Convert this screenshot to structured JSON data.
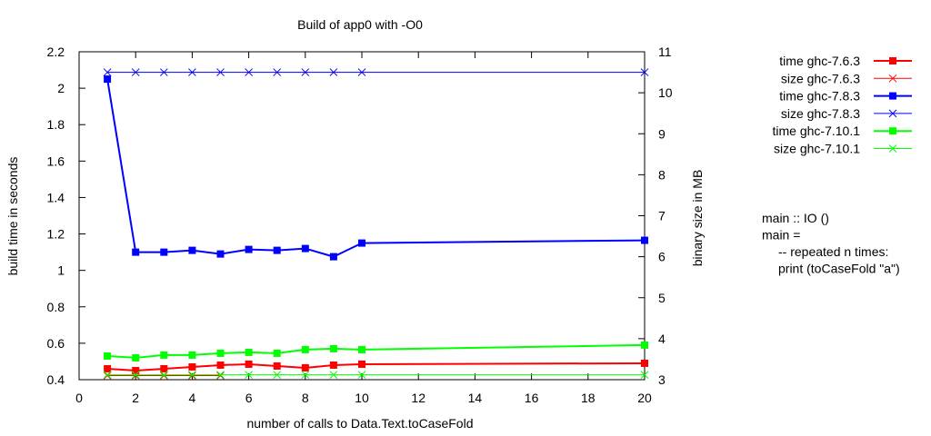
{
  "chart_data": {
    "type": "line",
    "title": "Build of app0 with -O0",
    "xlabel": "number of calls to Data.Text.toCaseFold",
    "ylabel": "build time in seconds",
    "y2label": "binary size in MB",
    "xlim": [
      0,
      20
    ],
    "ylim": [
      0.4,
      2.2
    ],
    "y2lim": [
      3,
      11
    ],
    "xticks": [
      "0",
      "2",
      "4",
      "6",
      "8",
      "10",
      "12",
      "14",
      "16",
      "18",
      "20"
    ],
    "yticks": [
      "0.4",
      "0.6",
      "0.8",
      "1",
      "1.2",
      "1.4",
      "1.6",
      "1.8",
      "2",
      "2.2"
    ],
    "y2ticks": [
      "3",
      "4",
      "5",
      "6",
      "7",
      "8",
      "9",
      "10",
      "11"
    ],
    "grid": false,
    "legend_position": "right",
    "series": [
      {
        "name": "time ghc-7.6.3",
        "axis": "y",
        "marker": "square",
        "color": "#ff0000",
        "x": [
          1,
          2,
          3,
          4,
          5,
          6,
          7,
          8,
          9,
          10,
          20
        ],
        "values": [
          0.46,
          0.45,
          0.46,
          0.47,
          0.48,
          0.485,
          0.475,
          0.465,
          0.48,
          0.485,
          0.49
        ]
      },
      {
        "name": "size ghc-7.6.3",
        "axis": "y2",
        "marker": "x",
        "color": "#ff0000",
        "x": [
          1,
          2,
          3,
          4,
          5
        ],
        "values": [
          3.1,
          3.1,
          3.1,
          3.1,
          3.1
        ]
      },
      {
        "name": "time ghc-7.8.3",
        "axis": "y",
        "marker": "square",
        "color": "#0000ff",
        "x": [
          1,
          2,
          3,
          4,
          5,
          6,
          7,
          8,
          9,
          10,
          20
        ],
        "values": [
          2.05,
          1.1,
          1.1,
          1.11,
          1.09,
          1.115,
          1.11,
          1.12,
          1.075,
          1.15,
          1.165
        ]
      },
      {
        "name": "size ghc-7.8.3",
        "axis": "y2",
        "marker": "x",
        "color": "#0000ff",
        "x": [
          1,
          2,
          3,
          4,
          5,
          6,
          7,
          8,
          9,
          10,
          20
        ],
        "values": [
          10.5,
          10.5,
          10.5,
          10.5,
          10.5,
          10.5,
          10.5,
          10.5,
          10.5,
          10.5,
          10.5
        ]
      },
      {
        "name": "time ghc-7.10.1",
        "axis": "y",
        "marker": "square",
        "color": "#00ff00",
        "x": [
          1,
          2,
          3,
          4,
          5,
          6,
          7,
          8,
          9,
          10,
          20
        ],
        "values": [
          0.53,
          0.52,
          0.535,
          0.535,
          0.545,
          0.55,
          0.545,
          0.565,
          0.57,
          0.565,
          0.59
        ]
      },
      {
        "name": "size ghc-7.10.1",
        "axis": "y2",
        "marker": "x",
        "color": "#00ff00",
        "x": [
          1,
          2,
          3,
          4,
          5,
          6,
          7,
          8,
          9,
          10,
          20
        ],
        "values": [
          3.12,
          3.12,
          3.12,
          3.12,
          3.12,
          3.12,
          3.12,
          3.12,
          3.12,
          3.12,
          3.12
        ]
      }
    ],
    "annotation": [
      "main :: IO ()",
      "main =",
      "    -- repeated n times:",
      "    print (toCaseFold \"a\")"
    ]
  }
}
